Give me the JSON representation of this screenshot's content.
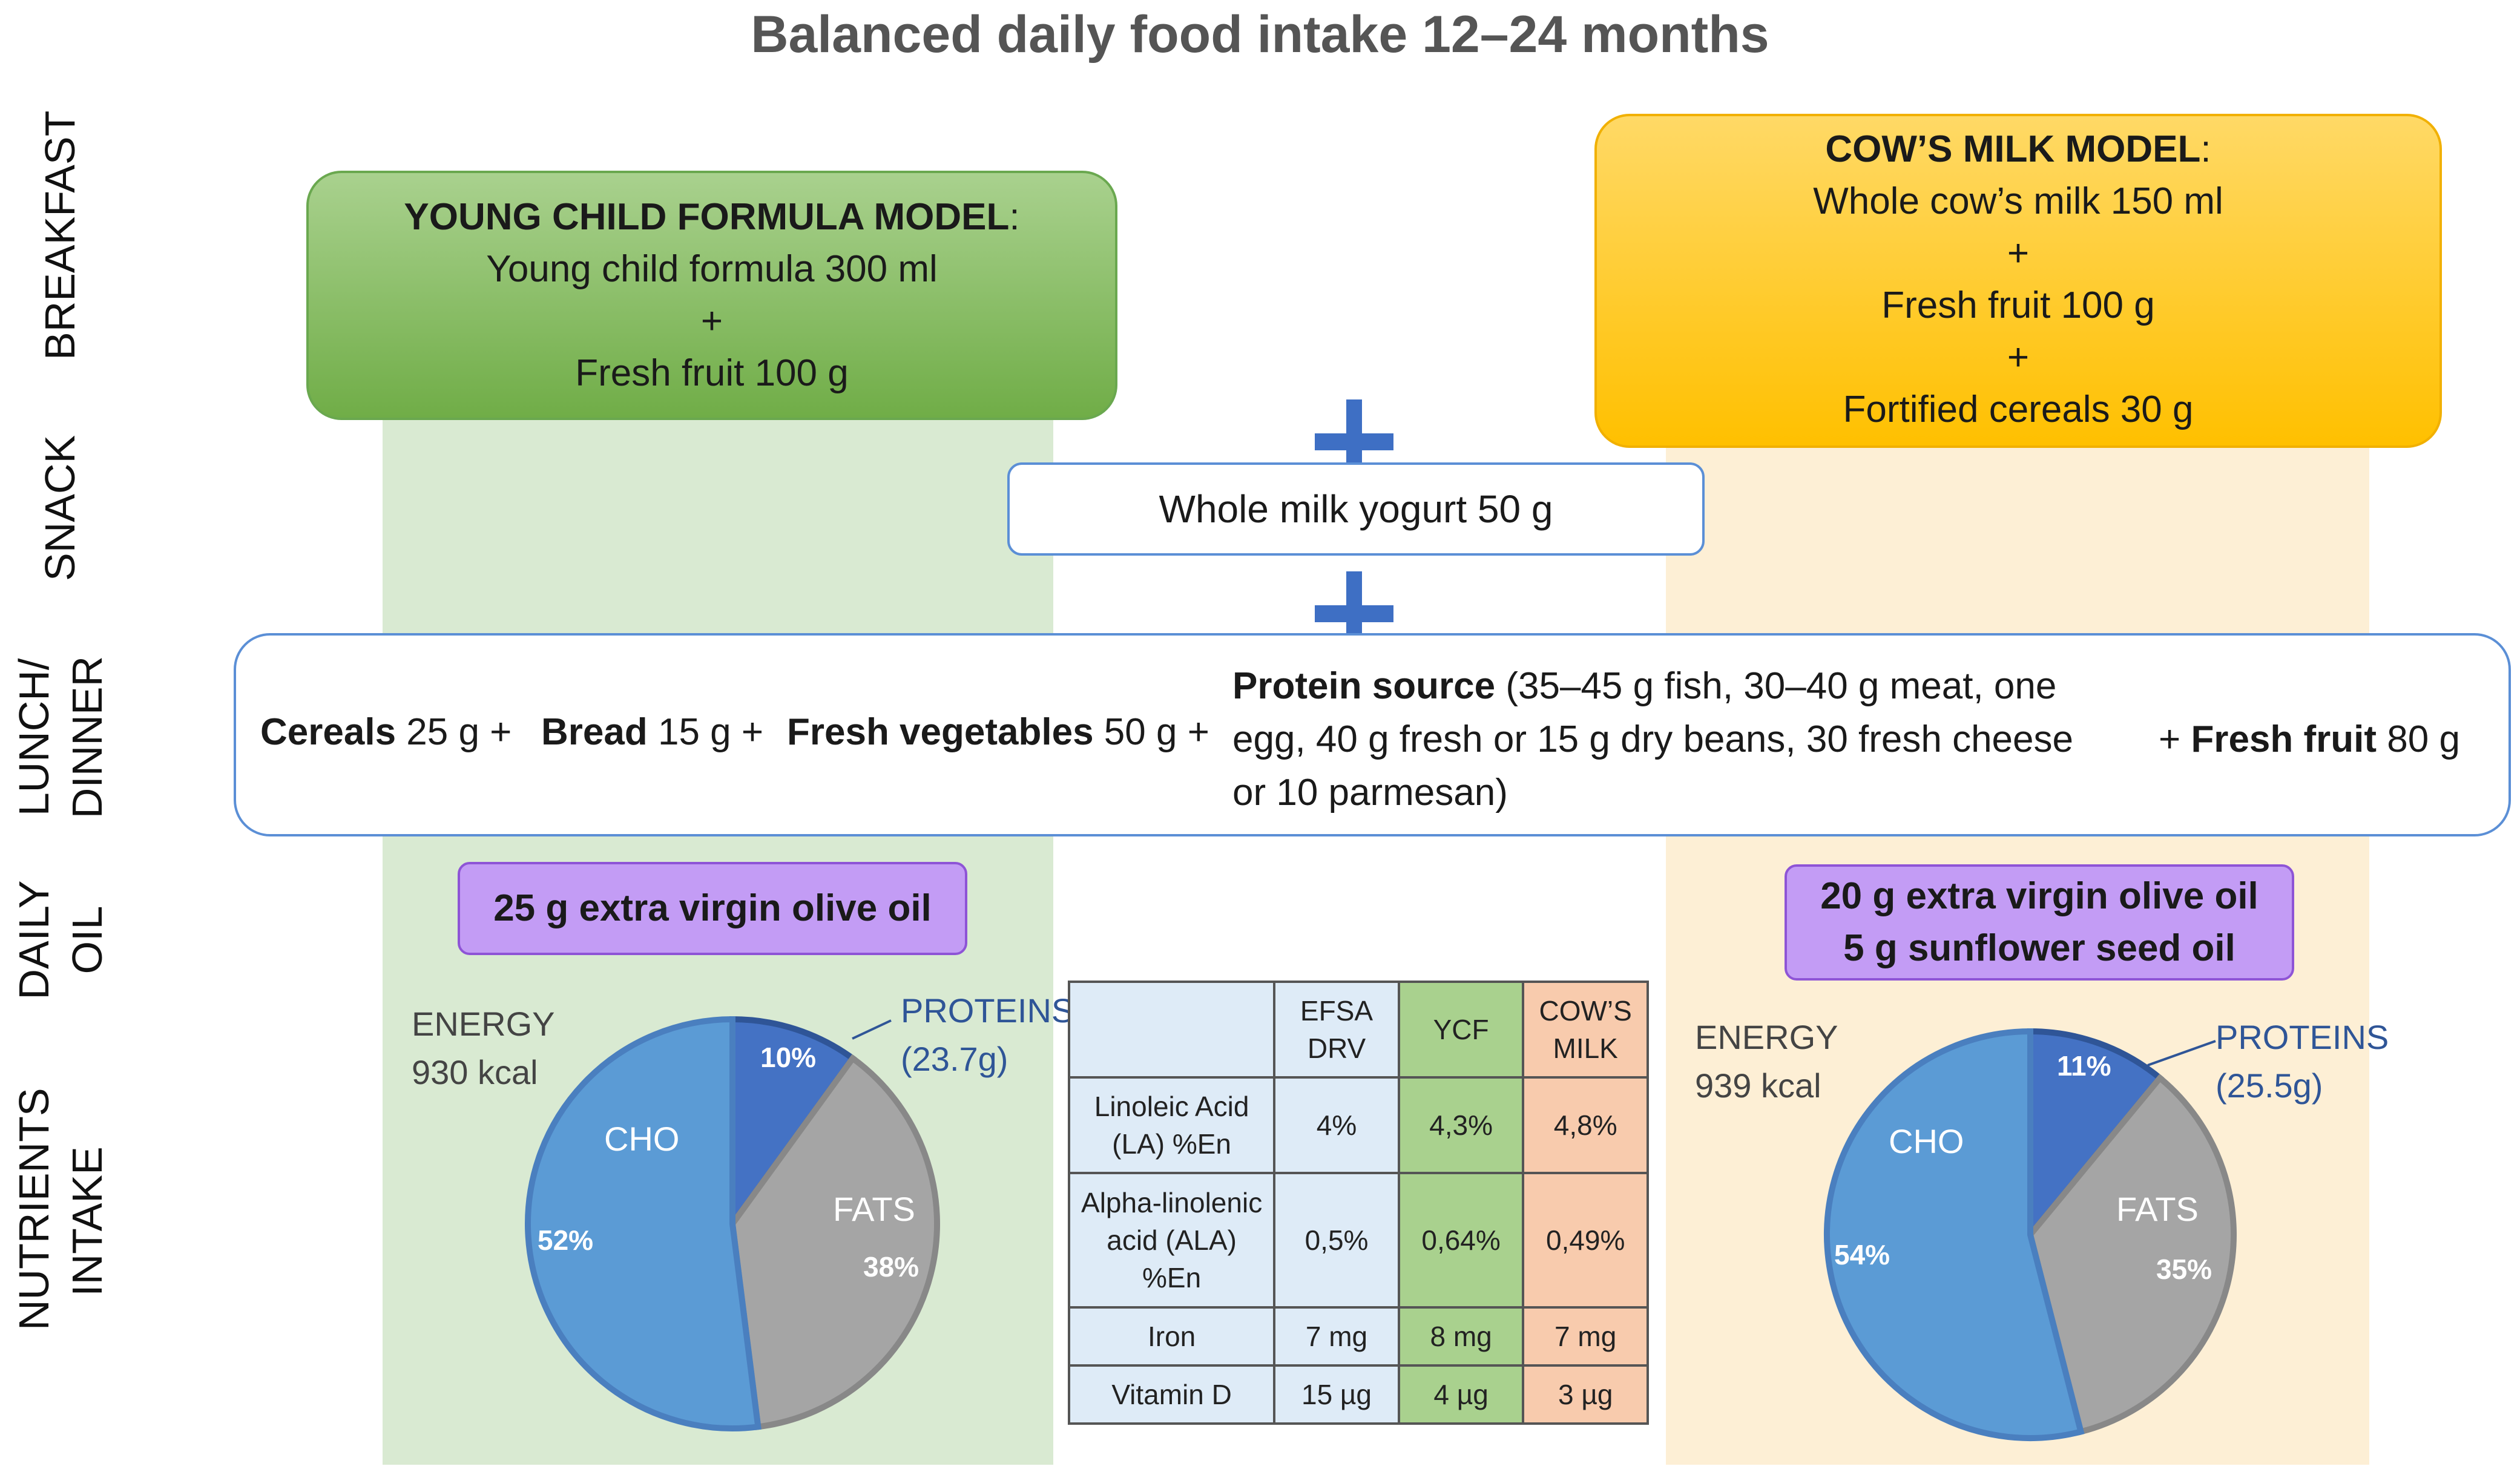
{
  "title": "Balanced daily food intake 12–24 months",
  "row_labels": {
    "breakfast": "BREAKFAST",
    "snack": "SNACK",
    "lunch_line1": "LUNCH/",
    "lunch_line2": "DINNER",
    "oil_line1": "DAILY",
    "oil_line2": "OIL",
    "nutrients_line1": "NUTRIENTS",
    "nutrients_line2": "INTAKE"
  },
  "ycf_model": {
    "heading": "YOUNG CHILD FORMULA MODEL",
    "colon": ":",
    "line1": "Young child formula 300 ml",
    "plus": "+",
    "line2": "Fresh fruit 100 g"
  },
  "cow_model": {
    "heading": "COW’S MILK MODEL",
    "colon": ":",
    "line1": "Whole cow’s milk 150 ml",
    "plus1": "+",
    "line2": "Fresh fruit 100 g",
    "plus2": "+",
    "line3": "Fortified cereals 30 g"
  },
  "snack": "Whole milk yogurt 50 g",
  "lunch": {
    "cereals_label": "Cereals",
    "cereals_amount": " 25 g +",
    "bread_label": "Bread",
    "bread_amount": " 15 g +",
    "veg_label": "Fresh vegetables",
    "veg_amount": " 50 g +",
    "protein_label": "Protein source",
    "protein_l1": " (35–45 g fish, 30–40 g meat, one",
    "protein_l2": "egg, 40 g fresh or 15 g dry beans, 30 fresh cheese",
    "protein_l3": "or 10 parmesan)",
    "fruit_plus": "+ ",
    "fruit_label": "Fresh fruit",
    "fruit_amount": " 80 g"
  },
  "oil": {
    "left": "25 g extra virgin olive oil",
    "right_line1": "20 g extra virgin olive oil",
    "right_line2": "5 g sunflower seed oil"
  },
  "pie_left": {
    "energy_label": "ENERGY",
    "energy_value": "930 kcal",
    "proteins_label": "PROTEINS",
    "proteins_amount": "(23.7g)",
    "cho_label": "CHO",
    "fats_label": "FATS",
    "pct_proteins": "10%",
    "pct_cho": "52%",
    "pct_fats": "38%"
  },
  "pie_right": {
    "energy_label": "ENERGY",
    "energy_value": "939 kcal",
    "proteins_label": "PROTEINS",
    "proteins_amount": "(25.5g)",
    "cho_label": "CHO",
    "fats_label": "FATS",
    "pct_proteins": "11%",
    "pct_cho": "54%",
    "pct_fats": "35%"
  },
  "chart_data": [
    {
      "type": "pie",
      "title": "YCF model energy 930 kcal",
      "categories": [
        "PROTEINS",
        "FATS",
        "CHO"
      ],
      "values": [
        10,
        38,
        52
      ],
      "colors": [
        "#4472c4",
        "#a5a5a5",
        "#5b9bd5"
      ]
    },
    {
      "type": "pie",
      "title": "Cow's milk model energy 939 kcal",
      "categories": [
        "PROTEINS",
        "FATS",
        "CHO"
      ],
      "values": [
        11,
        35,
        54
      ],
      "colors": [
        "#4472c4",
        "#a5a5a5",
        "#5b9bd5"
      ]
    }
  ],
  "table": {
    "headers": [
      "",
      "EFSA DRV",
      "YCF",
      "COW’S MILK"
    ],
    "rows": [
      [
        "Linoleic Acid (LA) %En",
        "4%",
        "4,3%",
        "4,8%"
      ],
      [
        "Alpha-linolenic acid (ALA) %En",
        "0,5%",
        "0,64%",
        "0,49%"
      ],
      [
        "Iron",
        "7 mg",
        "8 mg",
        "7 mg"
      ],
      [
        "Vitamin D",
        "15 µg",
        "4 µg",
        "3 µg"
      ]
    ]
  }
}
